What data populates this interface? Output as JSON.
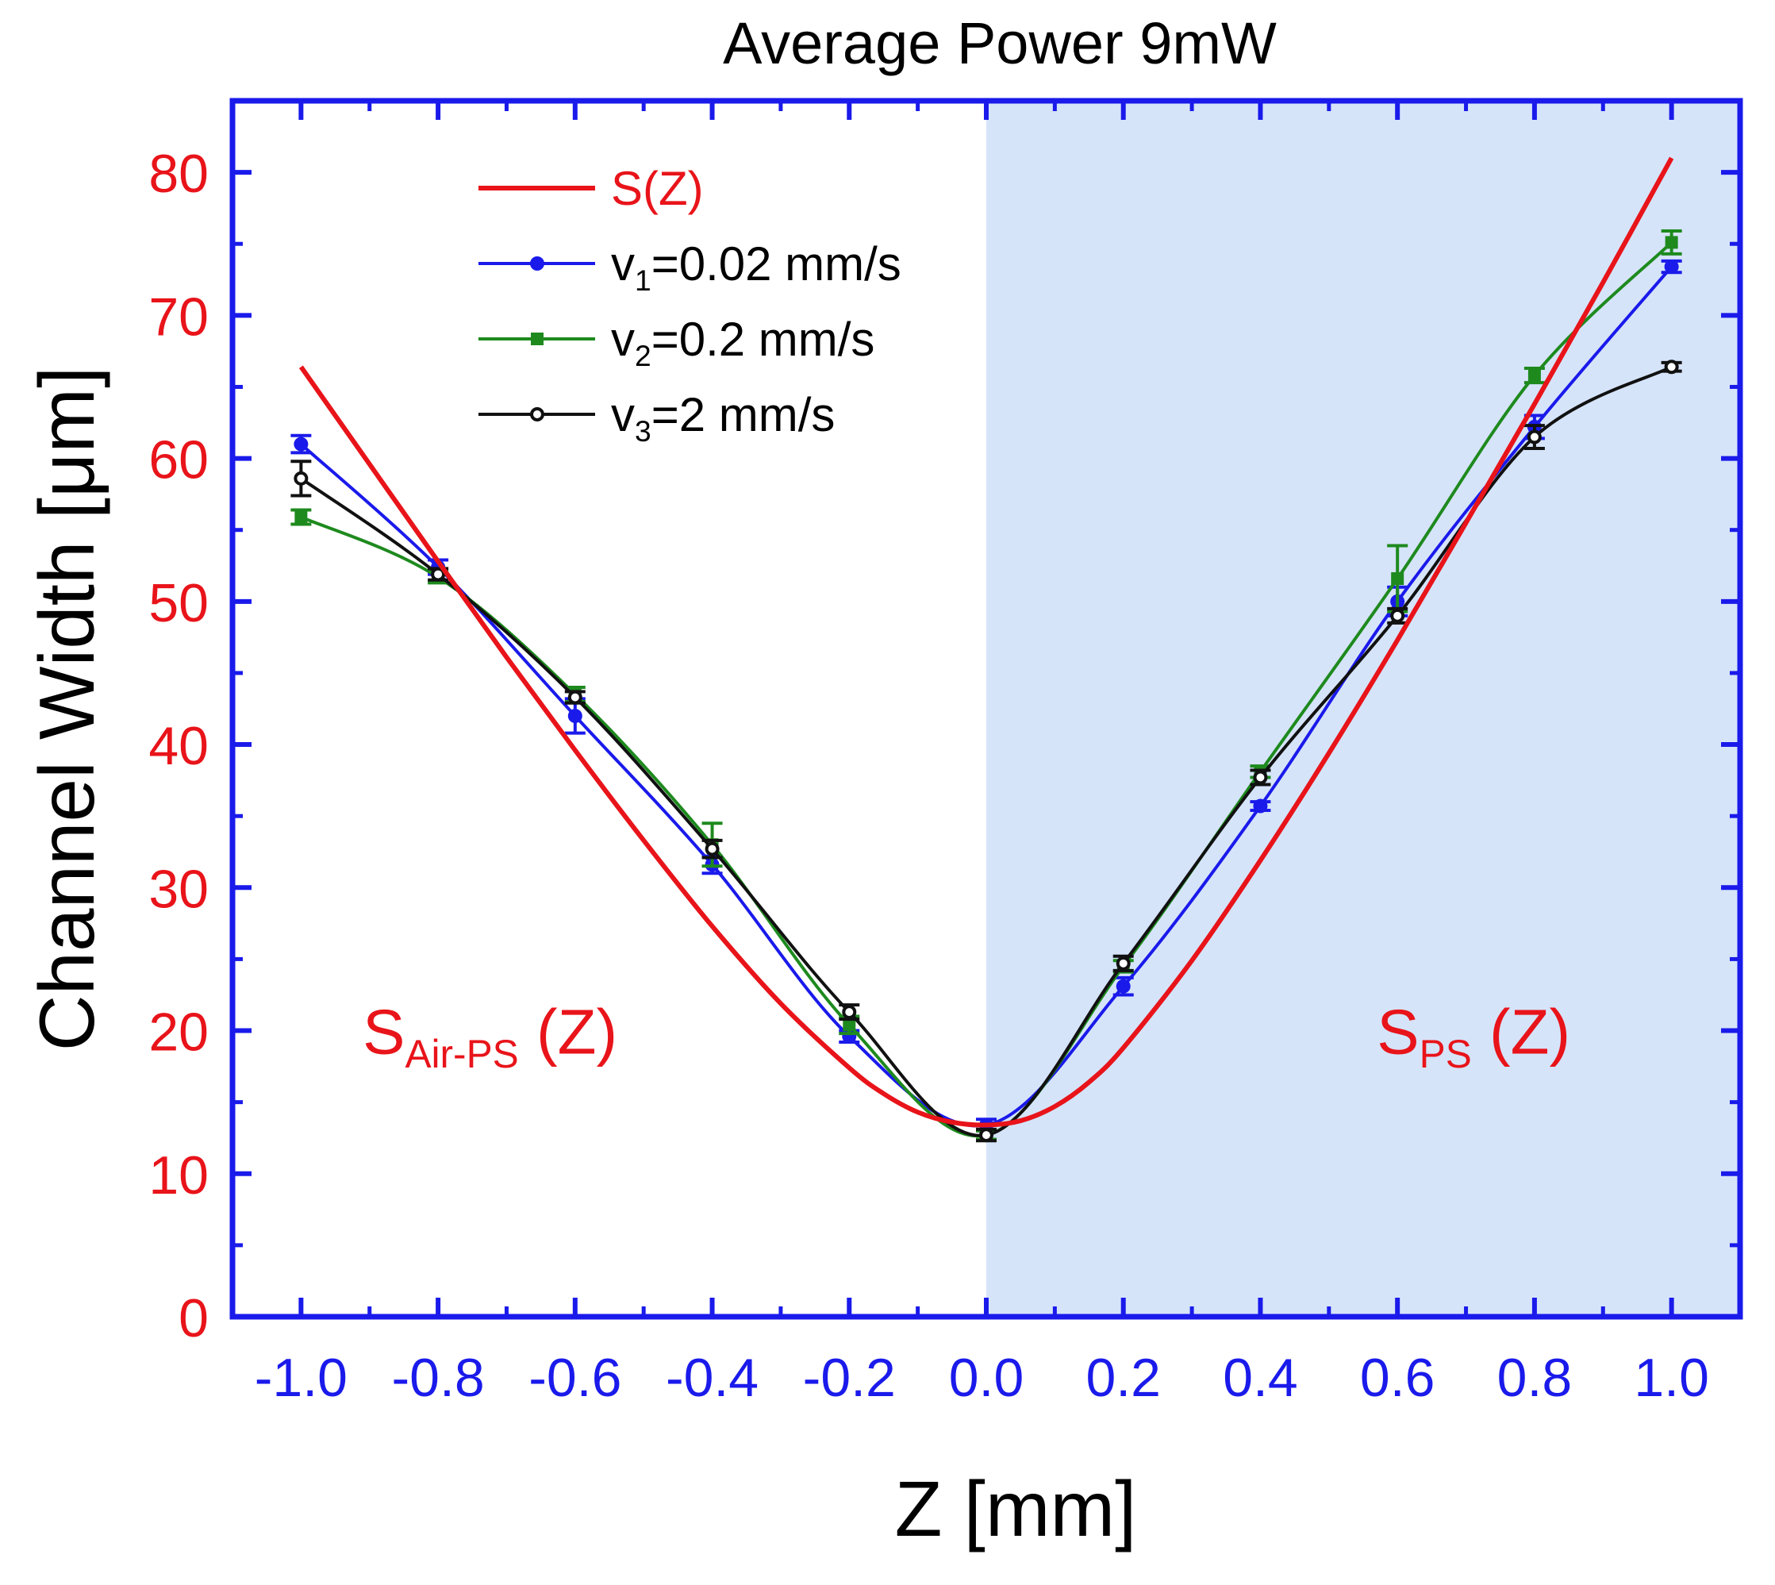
{
  "chart_data": {
    "type": "line",
    "title": "Average Power 9mW",
    "xlabel": "Z [mm]",
    "ylabel": "Channel Width [μm]",
    "xlim": [
      -1.1,
      1.1
    ],
    "ylim": [
      0,
      85
    ],
    "xticks": [
      -1.0,
      -0.8,
      -0.6,
      -0.4,
      -0.2,
      0.0,
      0.2,
      0.4,
      0.6,
      0.8,
      1.0
    ],
    "xtick_labels": [
      "-1.0",
      "-0.8",
      "-0.6",
      "-0.4",
      "-0.2",
      "0.0",
      "0.2",
      "0.4",
      "0.6",
      "0.8",
      "1.0"
    ],
    "yticks": [
      0,
      10,
      20,
      30,
      40,
      50,
      60,
      70,
      80
    ],
    "ytick_labels": [
      "0",
      "10",
      "20",
      "30",
      "40",
      "50",
      "60",
      "70",
      "80"
    ],
    "shaded_region": {
      "x_from": 0.0,
      "x_to": 1.1,
      "color": "#d6e4fa"
    },
    "annotations": [
      {
        "name": "air-ps-label",
        "main": "S",
        "sub": "Air-PS",
        "tail": " (Z)",
        "x": -0.91,
        "y": 18.4
      },
      {
        "name": "ps-label",
        "main": "S",
        "sub": "PS",
        "tail": " (Z)",
        "x": 0.57,
        "y": 18.4
      }
    ],
    "series": [
      {
        "name": "S(Z)",
        "legend": {
          "main": "S(Z)",
          "sub": "",
          "tail": ""
        },
        "color": "#e8141a",
        "marker": "none",
        "x": [
          -1.0,
          -0.9,
          -0.8,
          -0.7,
          -0.6,
          -0.5,
          -0.4,
          -0.3,
          -0.2,
          -0.15,
          -0.1,
          -0.05,
          0.0,
          0.05,
          0.1,
          0.15,
          0.2,
          0.3,
          0.4,
          0.5,
          0.6,
          0.7,
          0.8,
          0.9,
          1.0
        ],
        "values": [
          66.4,
          59.6,
          52.8,
          46.1,
          39.6,
          33.3,
          27.3,
          21.9,
          17.4,
          15.6,
          14.3,
          13.6,
          13.4,
          13.7,
          14.7,
          16.4,
          18.8,
          24.9,
          31.9,
          39.4,
          47.3,
          55.5,
          63.8,
          72.3,
          81.0
        ]
      },
      {
        "name": "v1=0.02 mm/s",
        "legend": {
          "main": "v",
          "sub": "1",
          "tail": "=0.02 mm/s"
        },
        "color": "#1a1aeb",
        "marker": "circle",
        "x": [
          -1.0,
          -0.8,
          -0.6,
          -0.4,
          -0.2,
          0.0,
          0.2,
          0.4,
          0.6,
          0.8,
          1.0
        ],
        "values": [
          61.0,
          52.4,
          42.0,
          31.6,
          19.6,
          13.4,
          23.1,
          35.7,
          50.0,
          62.2,
          73.4
        ],
        "errors": [
          0.6,
          0.5,
          1.2,
          0.6,
          0.4,
          0.4,
          0.6,
          0.3,
          1.0,
          0.8,
          0.4
        ]
      },
      {
        "name": "v2=0.2 mm/s",
        "legend": {
          "main": "v",
          "sub": "2",
          "tail": "=0.2 mm/s"
        },
        "color": "#1e8a1e",
        "marker": "square",
        "x": [
          -1.0,
          -0.8,
          -0.6,
          -0.4,
          -0.2,
          0.0,
          0.2,
          0.4,
          0.6,
          0.8,
          1.0
        ],
        "values": [
          55.9,
          51.7,
          43.5,
          33.0,
          20.4,
          12.7,
          24.5,
          38.1,
          51.6,
          65.8,
          75.1
        ],
        "errors": [
          0.5,
          0.4,
          0.5,
          1.5,
          0.6,
          0.3,
          0.4,
          0.4,
          2.3,
          0.5,
          0.8
        ]
      },
      {
        "name": "v3=2 mm/s",
        "legend": {
          "main": "v",
          "sub": "3",
          "tail": "=2 mm/s"
        },
        "color": "#111111",
        "marker": "open-circle",
        "x": [
          -1.0,
          -0.8,
          -0.6,
          -0.4,
          -0.2,
          0.0,
          0.2,
          0.4,
          0.6,
          0.8,
          1.0
        ],
        "values": [
          58.6,
          51.9,
          43.3,
          32.7,
          21.3,
          12.7,
          24.7,
          37.7,
          49.0,
          61.5,
          66.4
        ],
        "errors": [
          1.2,
          0.4,
          0.4,
          0.6,
          0.5,
          0.4,
          0.5,
          0.5,
          0.5,
          0.8,
          0.3
        ]
      }
    ]
  }
}
